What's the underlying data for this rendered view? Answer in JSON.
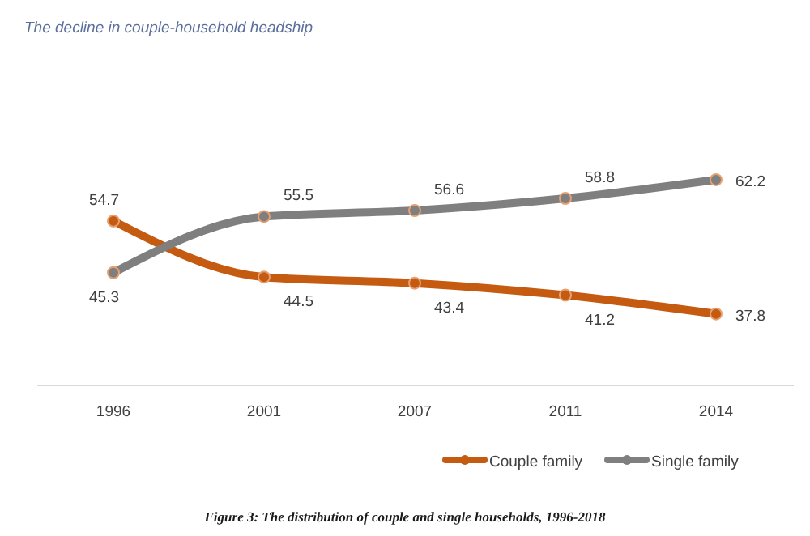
{
  "chart_data": {
    "type": "line",
    "title": "The decline in couple-household headship",
    "categories": [
      "1996",
      "2001",
      "2007",
      "2011",
      "2014"
    ],
    "series": [
      {
        "name": "Couple family",
        "color": "#c55a11",
        "values": [
          54.7,
          44.5,
          43.4,
          41.2,
          37.8
        ]
      },
      {
        "name": "Single family",
        "color": "#7f7f7f",
        "values": [
          45.3,
          55.5,
          56.6,
          58.8,
          62.2
        ]
      }
    ],
    "data_labels": true,
    "marker": "circle",
    "line_style": "solid",
    "legend": "bottom",
    "annotations": [
      "Figure 3: The distribution of couple and single households, 1996-2018"
    ]
  }
}
